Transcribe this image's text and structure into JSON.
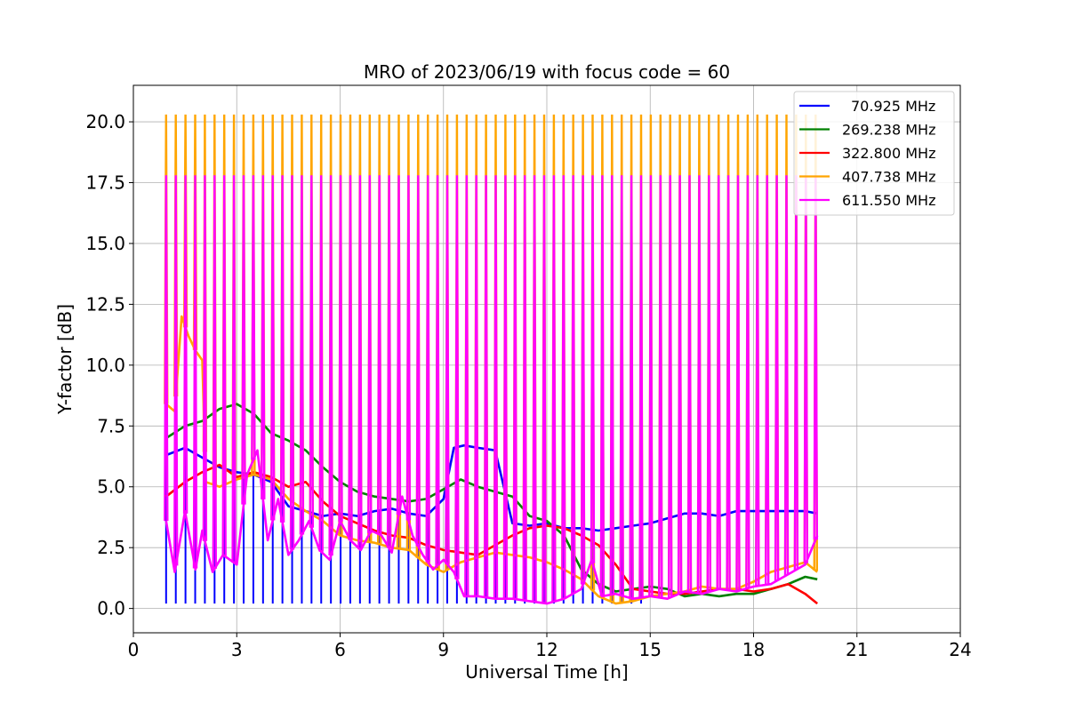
{
  "chart_data": {
    "type": "line",
    "title": "MRO of 2023/06/19 with focus code = 60",
    "xlabel": "Universal Time [h]",
    "ylabel": "Y-factor [dB]",
    "xlim": [
      0,
      24
    ],
    "ylim": [
      -1.0,
      21.5
    ],
    "x_ticks": [
      0,
      3,
      6,
      9,
      12,
      15,
      18,
      21,
      24
    ],
    "x_tick_labels": [
      "0",
      "3",
      "6",
      "9",
      "12",
      "15",
      "18",
      "21",
      "24"
    ],
    "y_ticks": [
      0,
      2.5,
      5,
      7.5,
      10,
      12.5,
      15,
      17.5,
      20
    ],
    "y_tick_labels": [
      "0.0",
      "2.5",
      "5.0",
      "7.5",
      "10.0",
      "12.5",
      "15.0",
      "17.5",
      "20.0"
    ],
    "grid": true,
    "legend_position": "top-right",
    "calibration_pulses": {
      "start": 0.95,
      "end": 19.8,
      "count": 68,
      "peak_series": [
        "407.738 MHz",
        "611.550 MHz"
      ],
      "peak_values": [
        20.3,
        17.8
      ],
      "dip_series": "70.925 MHz",
      "dip_value": 0.2,
      "dip_end": 15.0
    },
    "series": [
      {
        "name": "70.925 MHz",
        "color": "#0000ff",
        "x": [
          0.95,
          1.5,
          2.0,
          2.5,
          3.0,
          3.5,
          4.0,
          4.5,
          5.0,
          5.5,
          6.0,
          6.5,
          7.0,
          7.5,
          8.0,
          8.5,
          9.0,
          9.3,
          9.6,
          10.0,
          10.5,
          11.0,
          11.5,
          12.0,
          12.5,
          13.0,
          13.5,
          14.0,
          14.5,
          15.0,
          15.5,
          16.0,
          16.5,
          17.0,
          17.5,
          18.0,
          18.5,
          19.0,
          19.5,
          19.85
        ],
        "y": [
          6.3,
          6.6,
          6.2,
          5.8,
          5.6,
          5.5,
          5.2,
          4.2,
          4.0,
          3.8,
          3.9,
          3.8,
          4.0,
          4.1,
          3.9,
          3.8,
          4.5,
          6.6,
          6.7,
          6.6,
          6.5,
          3.5,
          3.4,
          3.5,
          3.3,
          3.3,
          3.2,
          3.3,
          3.4,
          3.5,
          3.7,
          3.9,
          3.9,
          3.8,
          4.0,
          4.0,
          4.0,
          4.0,
          4.0,
          3.9
        ]
      },
      {
        "name": "269.238 MHz",
        "color": "#008000",
        "x": [
          0.95,
          1.5,
          2.0,
          2.5,
          3.0,
          3.5,
          4.0,
          4.5,
          5.0,
          5.5,
          6.0,
          6.5,
          7.0,
          7.5,
          8.0,
          8.5,
          9.0,
          9.5,
          10.0,
          10.5,
          11.0,
          11.5,
          12.0,
          12.5,
          13.0,
          13.5,
          14.0,
          14.5,
          15.0,
          15.5,
          16.0,
          16.5,
          17.0,
          17.5,
          18.0,
          18.5,
          19.0,
          19.5,
          19.85
        ],
        "y": [
          7.0,
          7.5,
          7.7,
          8.2,
          8.4,
          8.0,
          7.2,
          6.9,
          6.5,
          5.8,
          5.2,
          4.8,
          4.6,
          4.5,
          4.4,
          4.5,
          4.9,
          5.3,
          5.0,
          4.8,
          4.6,
          3.8,
          3.6,
          3.0,
          1.6,
          1.0,
          0.7,
          0.8,
          0.9,
          0.8,
          0.5,
          0.6,
          0.5,
          0.6,
          0.6,
          0.8,
          1.0,
          1.3,
          1.2
        ]
      },
      {
        "name": "322.800 MHz",
        "color": "#ff0000",
        "x": [
          0.95,
          1.5,
          2.0,
          2.5,
          3.0,
          3.5,
          4.0,
          4.5,
          5.0,
          5.5,
          6.0,
          6.5,
          7.0,
          7.5,
          8.0,
          8.5,
          9.0,
          9.5,
          10.0,
          10.5,
          11.0,
          11.5,
          12.0,
          12.5,
          13.0,
          13.5,
          14.0,
          14.5,
          15.0,
          15.5,
          16.0,
          16.5,
          17.0,
          17.5,
          18.0,
          18.5,
          19.0,
          19.5,
          19.85
        ],
        "y": [
          4.6,
          5.2,
          5.6,
          5.9,
          5.4,
          5.6,
          5.4,
          5.0,
          5.2,
          4.4,
          3.8,
          3.5,
          3.2,
          3.0,
          2.9,
          2.6,
          2.4,
          2.3,
          2.2,
          2.6,
          3.0,
          3.3,
          3.4,
          3.3,
          3.0,
          2.6,
          1.8,
          0.8,
          0.7,
          0.6,
          0.6,
          0.7,
          0.8,
          0.8,
          0.7,
          0.8,
          1.0,
          0.6,
          0.2
        ]
      },
      {
        "name": "407.738 MHz",
        "color": "#ffa500",
        "x": [
          0.95,
          1.2,
          1.4,
          1.6,
          1.8,
          2.0,
          2.1,
          2.3,
          2.5,
          3.0,
          3.5,
          4.0,
          4.5,
          5.0,
          5.5,
          6.0,
          6.5,
          7.0,
          7.5,
          8.0,
          8.5,
          9.0,
          9.5,
          10.0,
          10.5,
          11.0,
          11.5,
          12.0,
          12.5,
          13.0,
          13.5,
          14.0,
          14.5,
          15.0,
          15.5,
          16.0,
          16.5,
          17.0,
          17.5,
          18.0,
          18.5,
          19.0,
          19.5,
          19.85
        ],
        "y": [
          8.4,
          8.1,
          12.0,
          11.2,
          10.6,
          10.2,
          5.2,
          5.1,
          5.0,
          5.3,
          5.5,
          5.3,
          4.5,
          4.0,
          3.6,
          3.0,
          2.8,
          2.7,
          2.5,
          2.4,
          1.8,
          1.5,
          1.9,
          2.1,
          2.3,
          2.2,
          2.1,
          1.9,
          1.6,
          1.2,
          0.5,
          0.2,
          0.3,
          0.5,
          0.6,
          0.7,
          0.9,
          0.8,
          0.8,
          1.1,
          1.5,
          1.7,
          1.9,
          1.5
        ]
      },
      {
        "name": "611.550 MHz",
        "color": "#ff00ff",
        "x": [
          0.95,
          1.2,
          1.5,
          1.8,
          2.0,
          2.3,
          2.6,
          3.0,
          3.3,
          3.6,
          3.9,
          4.2,
          4.5,
          4.8,
          5.1,
          5.4,
          5.7,
          6.0,
          6.3,
          6.6,
          6.9,
          7.2,
          7.5,
          7.8,
          8.1,
          8.4,
          8.7,
          9.0,
          9.3,
          9.6,
          10.0,
          10.5,
          11.0,
          11.5,
          12.0,
          12.5,
          13.0,
          13.3,
          13.6,
          14.0,
          14.5,
          15.0,
          15.5,
          16.0,
          16.5,
          17.0,
          17.5,
          18.0,
          18.5,
          19.0,
          19.5,
          19.85
        ],
        "y": [
          3.6,
          1.5,
          4.0,
          1.6,
          3.2,
          1.5,
          2.2,
          1.8,
          5.5,
          6.5,
          2.8,
          4.5,
          2.2,
          2.8,
          3.6,
          2.4,
          2.0,
          3.6,
          2.8,
          2.4,
          3.2,
          3.0,
          2.3,
          4.6,
          3.0,
          2.2,
          1.6,
          2.0,
          1.5,
          0.5,
          0.5,
          0.4,
          0.4,
          0.3,
          0.2,
          0.4,
          0.8,
          2.0,
          0.5,
          0.6,
          0.4,
          0.5,
          0.4,
          0.7,
          0.6,
          0.8,
          0.7,
          0.9,
          1.0,
          1.4,
          1.8,
          3.0
        ]
      }
    ]
  }
}
